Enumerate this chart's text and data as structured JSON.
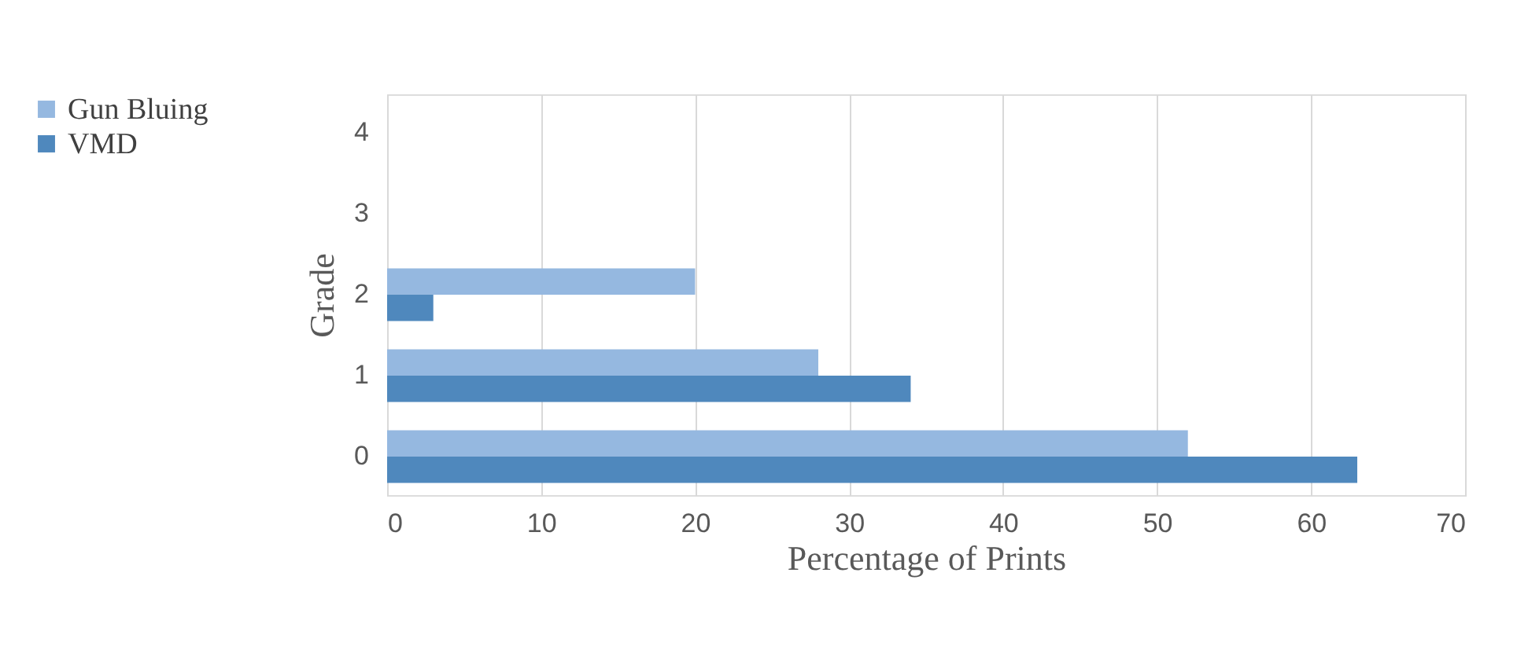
{
  "chart_data": {
    "type": "bar",
    "orientation": "horizontal",
    "xlabel": "Percentage of Prints",
    "ylabel": "Grade",
    "categories": [
      "4",
      "3",
      "2",
      "1",
      "0"
    ],
    "series": [
      {
        "name": "Gun Bluing",
        "color": "#95b8e0",
        "values": [
          null,
          null,
          20,
          28,
          52
        ]
      },
      {
        "name": "VMD",
        "color": "#4f88bd",
        "values": [
          null,
          null,
          3,
          34,
          63
        ]
      }
    ],
    "xlim": [
      0,
      70
    ],
    "xticks": [
      0,
      10,
      20,
      30,
      40,
      50,
      60,
      70
    ],
    "grid": "x",
    "legend": "left"
  }
}
